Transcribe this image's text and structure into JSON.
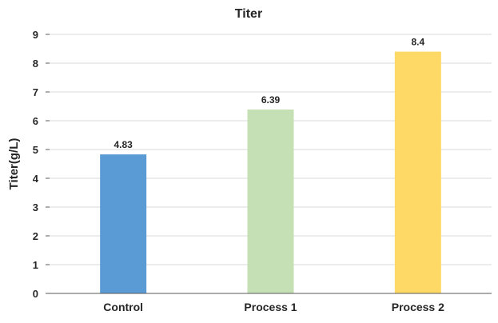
{
  "chart_data": {
    "type": "bar",
    "title": "Titer",
    "xlabel": "",
    "ylabel": "Titer(g/L)",
    "categories": [
      "Control",
      "Process 1",
      "Process 2"
    ],
    "values": [
      4.83,
      6.39,
      8.4
    ],
    "data_labels": [
      "4.83",
      "6.39",
      "8.4"
    ],
    "bar_colors": [
      "#5b9bd5",
      "#c5e0b4",
      "#ffd966"
    ],
    "ylim": [
      0,
      9
    ],
    "y_ticks": [
      0,
      1,
      2,
      3,
      4,
      5,
      6,
      7,
      8,
      9
    ],
    "grid": true,
    "grid_color": "#d9d9d9",
    "axis_color": "#595959",
    "text_color": "#262626",
    "legend": "none"
  }
}
